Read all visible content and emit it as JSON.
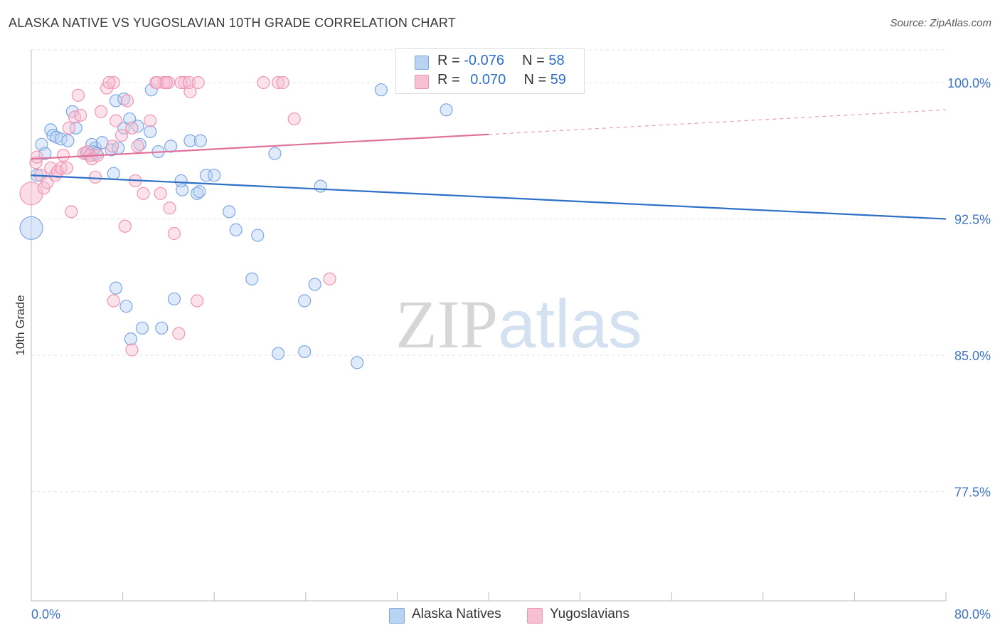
{
  "title": "ALASKA NATIVE VS YUGOSLAVIAN 10TH GRADE CORRELATION CHART",
  "source": "Source: ZipAtlas.com",
  "watermark": {
    "zip": "ZIP",
    "atlas": "atlas"
  },
  "colors": {
    "blue": "#2e6fc7",
    "blue_fill": "#b9d3f3",
    "blue_stroke": "#7ea7e0",
    "pink": "#e0719a",
    "pink_fill": "#f7bfd2",
    "pink_stroke": "#ee95b5",
    "tick_text": "#3d74c4",
    "grid": "#e3e3e3"
  },
  "legend": {
    "rows": [
      {
        "r_label": "R = ",
        "r_value": "-0.076",
        "n_label": "N = ",
        "n_value": "58",
        "series": "blue"
      },
      {
        "r_label": "R = ",
        "r_value": "0.070",
        "n_label": "N = ",
        "n_value": "59",
        "series": "pink"
      }
    ]
  },
  "bottom_legend": [
    {
      "label": "Alaska Natives",
      "series": "blue"
    },
    {
      "label": "Yugoslavians",
      "series": "pink"
    }
  ],
  "chart_data": {
    "type": "scatter",
    "title": "ALASKA NATIVE VS YUGOSLAVIAN 10TH GRADE CORRELATION CHART",
    "xlabel": "",
    "ylabel": "10th Grade",
    "xlim": [
      0,
      80
    ],
    "ylim": [
      71.5,
      101.8
    ],
    "x_tick_labels": [
      "0.0%",
      "80.0%"
    ],
    "y_ticks": [
      {
        "value": 100.0,
        "label": "100.0%"
      },
      {
        "value": 92.5,
        "label": "92.5%"
      },
      {
        "value": 85.0,
        "label": "85.0%"
      },
      {
        "value": 77.5,
        "label": "77.5%"
      }
    ],
    "grid": true,
    "legend_position": "top-center",
    "series": [
      {
        "name": "Alaska Natives",
        "color": "blue",
        "trend": {
          "x": [
            0,
            80
          ],
          "y": [
            94.9,
            92.5
          ],
          "dashed_from": null
        },
        "points": [
          [
            0.0,
            92.0
          ],
          [
            0.5,
            94.9
          ],
          [
            0.9,
            96.6
          ],
          [
            1.2,
            96.1
          ],
          [
            1.7,
            97.4
          ],
          [
            1.9,
            97.1
          ],
          [
            2.2,
            97.0
          ],
          [
            2.6,
            96.9
          ],
          [
            3.2,
            96.8
          ],
          [
            3.6,
            98.4
          ],
          [
            3.9,
            97.5
          ],
          [
            4.8,
            96.1
          ],
          [
            5.3,
            96.6
          ],
          [
            5.6,
            96.4
          ],
          [
            5.4,
            96.2
          ],
          [
            5.2,
            96.0
          ],
          [
            5.7,
            96.1
          ],
          [
            6.2,
            96.7
          ],
          [
            7.2,
            95.0
          ],
          [
            7.0,
            96.3
          ],
          [
            7.4,
            99.0
          ],
          [
            8.1,
            97.5
          ],
          [
            8.6,
            98.0
          ],
          [
            9.3,
            97.6
          ],
          [
            7.6,
            96.4
          ],
          [
            8.1,
            99.1
          ],
          [
            9.5,
            96.6
          ],
          [
            10.4,
            97.3
          ],
          [
            10.5,
            99.6
          ],
          [
            11.1,
            96.2
          ],
          [
            12.2,
            96.5
          ],
          [
            13.2,
            94.1
          ],
          [
            13.9,
            96.8
          ],
          [
            14.8,
            96.8
          ],
          [
            14.5,
            93.9
          ],
          [
            14.7,
            94.0
          ],
          [
            15.3,
            94.9
          ],
          [
            16.0,
            94.9
          ],
          [
            17.3,
            92.9
          ],
          [
            17.9,
            91.9
          ],
          [
            19.3,
            89.2
          ],
          [
            19.8,
            91.6
          ],
          [
            21.3,
            96.1
          ],
          [
            21.6,
            85.1
          ],
          [
            23.9,
            88.0
          ],
          [
            24.8,
            88.9
          ],
          [
            25.3,
            94.3
          ],
          [
            28.5,
            84.6
          ],
          [
            30.6,
            99.6
          ],
          [
            36.3,
            98.5
          ],
          [
            12.5,
            88.1
          ],
          [
            11.4,
            86.5
          ],
          [
            13.1,
            94.6
          ],
          [
            7.4,
            88.7
          ],
          [
            8.3,
            87.7
          ],
          [
            8.7,
            85.9
          ],
          [
            9.7,
            86.5
          ],
          [
            23.9,
            85.2
          ]
        ]
      },
      {
        "name": "Yugoslavians",
        "color": "pink",
        "trend": {
          "x": [
            0,
            80
          ],
          "y": [
            95.8,
            98.5
          ],
          "dashed_from": 40
        },
        "points": [
          [
            0.0,
            93.9
          ],
          [
            0.4,
            95.6
          ],
          [
            0.5,
            95.9
          ],
          [
            0.8,
            94.9
          ],
          [
            1.1,
            94.2
          ],
          [
            1.4,
            94.5
          ],
          [
            1.7,
            95.3
          ],
          [
            2.1,
            94.9
          ],
          [
            2.3,
            95.1
          ],
          [
            2.6,
            95.3
          ],
          [
            2.8,
            96.0
          ],
          [
            3.1,
            95.3
          ],
          [
            3.3,
            97.5
          ],
          [
            3.5,
            92.9
          ],
          [
            3.8,
            98.1
          ],
          [
            4.1,
            99.3
          ],
          [
            4.3,
            98.2
          ],
          [
            4.6,
            96.1
          ],
          [
            4.9,
            96.2
          ],
          [
            5.1,
            96.0
          ],
          [
            5.3,
            95.8
          ],
          [
            5.6,
            94.8
          ],
          [
            5.8,
            96.0
          ],
          [
            6.1,
            98.4
          ],
          [
            6.6,
            99.7
          ],
          [
            7.1,
            96.5
          ],
          [
            7.4,
            97.9
          ],
          [
            7.9,
            97.1
          ],
          [
            8.2,
            92.1
          ],
          [
            8.4,
            99.0
          ],
          [
            8.8,
            97.5
          ],
          [
            9.1,
            94.6
          ],
          [
            9.3,
            96.5
          ],
          [
            9.8,
            93.9
          ],
          [
            10.4,
            97.9
          ],
          [
            10.9,
            100.0
          ],
          [
            11.3,
            93.9
          ],
          [
            11.6,
            100.0
          ],
          [
            12.1,
            93.1
          ],
          [
            12.5,
            91.7
          ],
          [
            12.9,
            86.2
          ],
          [
            13.4,
            100.0
          ],
          [
            13.9,
            99.5
          ],
          [
            14.5,
            88.0
          ],
          [
            7.2,
            88.0
          ],
          [
            8.8,
            85.3
          ],
          [
            11.0,
            100.0
          ],
          [
            12.0,
            100.0
          ],
          [
            11.8,
            100.0
          ],
          [
            7.2,
            100.0
          ],
          [
            13.1,
            100.0
          ],
          [
            13.8,
            100.0
          ],
          [
            14.6,
            100.0
          ],
          [
            20.3,
            100.0
          ],
          [
            21.6,
            100.0
          ],
          [
            22.0,
            100.0
          ],
          [
            23.0,
            98.0
          ],
          [
            26.1,
            89.2
          ],
          [
            6.8,
            100.0
          ]
        ]
      }
    ]
  }
}
